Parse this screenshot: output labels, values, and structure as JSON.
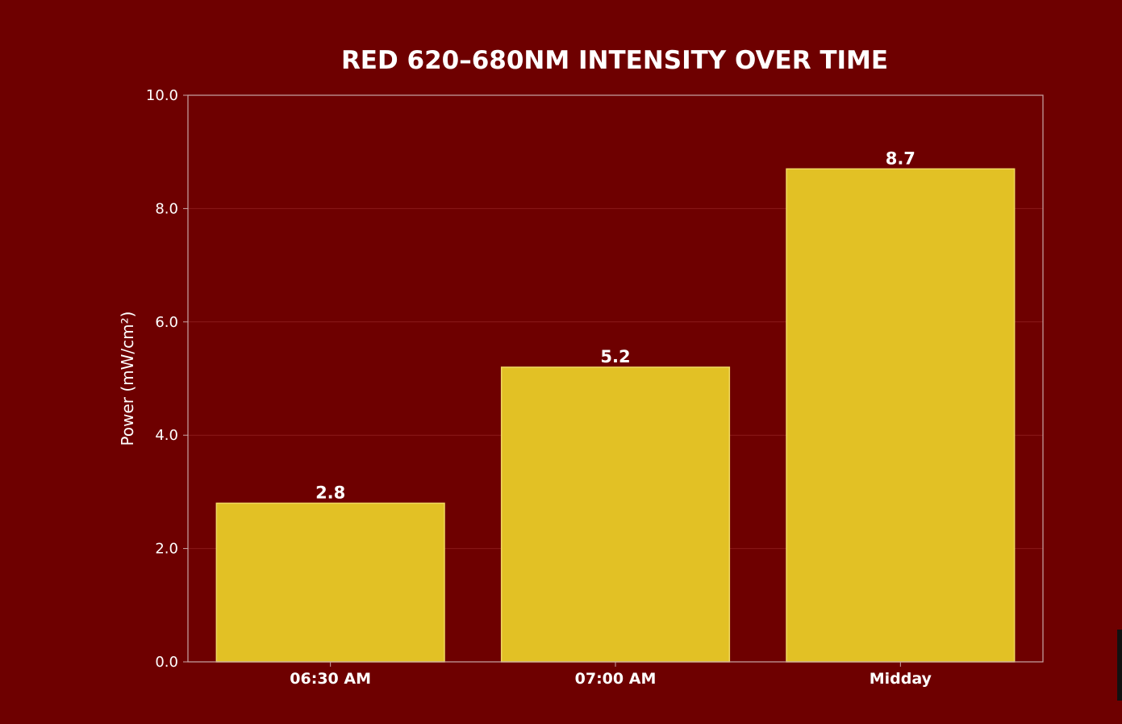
{
  "colors": {
    "background": "#6e0000",
    "bar": "#e2c125",
    "bar_edge": "#f0d860",
    "text": "#ffffff",
    "axis": "#c9a7a7",
    "grid": "#8a1a1a"
  },
  "chart_data": {
    "type": "bar",
    "title": "RED 620–680NM INTENSITY OVER TIME",
    "xlabel": "",
    "ylabel": "Power (mW/cm²)",
    "categories": [
      "06:30 AM",
      "07:00 AM",
      "Midday"
    ],
    "values": [
      2.8,
      5.2,
      8.7
    ],
    "value_labels": [
      "2.8",
      "5.2",
      "8.7"
    ],
    "ylim": [
      0,
      10
    ],
    "yticks": [
      0,
      2,
      4,
      6,
      8,
      10
    ],
    "ytick_labels": [
      "0.0",
      "2.0",
      "4.0",
      "6.0",
      "8.0",
      "10.0"
    ],
    "grid": true,
    "legend": "none"
  }
}
